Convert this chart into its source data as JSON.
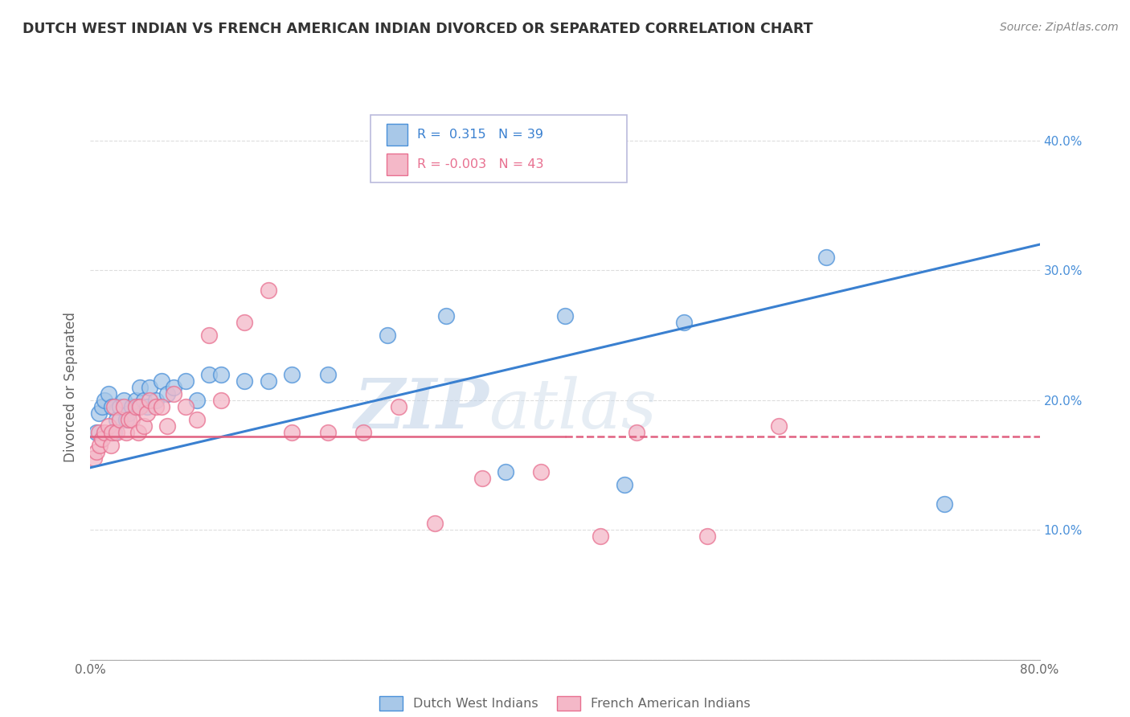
{
  "title": "DUTCH WEST INDIAN VS FRENCH AMERICAN INDIAN DIVORCED OR SEPARATED CORRELATION CHART",
  "source": "Source: ZipAtlas.com",
  "ylabel": "Divorced or Separated",
  "xlim": [
    0.0,
    0.8
  ],
  "ylim": [
    0.0,
    0.42
  ],
  "xticks": [
    0.0,
    0.2,
    0.4,
    0.6,
    0.8
  ],
  "xticklabels": [
    "0.0%",
    "",
    "",
    "",
    "80.0%"
  ],
  "yticks": [
    0.0,
    0.1,
    0.2,
    0.3,
    0.4
  ],
  "yticklabels_right": [
    "",
    "10.0%",
    "20.0%",
    "30.0%",
    "40.0%"
  ],
  "blue_R": 0.315,
  "blue_N": 39,
  "pink_R": -0.003,
  "pink_N": 43,
  "blue_color": "#a8c8e8",
  "pink_color": "#f4b8c8",
  "blue_edge_color": "#4a90d9",
  "pink_edge_color": "#e87090",
  "blue_line_color": "#3a80d0",
  "pink_line_color": "#e06080",
  "tick_color": "#4a90d9",
  "grid_color": "#dddddd",
  "watermark_color": "#c8ddf0",
  "legend_label_blue": "Dutch West Indians",
  "legend_label_pink": "French American Indians",
  "blue_scatter_x": [
    0.005,
    0.007,
    0.01,
    0.012,
    0.015,
    0.018,
    0.02,
    0.022,
    0.025,
    0.028,
    0.03,
    0.032,
    0.035,
    0.038,
    0.04,
    0.042,
    0.045,
    0.048,
    0.05,
    0.055,
    0.06,
    0.065,
    0.07,
    0.08,
    0.09,
    0.1,
    0.11,
    0.13,
    0.15,
    0.17,
    0.2,
    0.25,
    0.3,
    0.35,
    0.4,
    0.45,
    0.5,
    0.62,
    0.72
  ],
  "blue_scatter_y": [
    0.175,
    0.19,
    0.195,
    0.2,
    0.205,
    0.195,
    0.175,
    0.185,
    0.195,
    0.2,
    0.185,
    0.19,
    0.195,
    0.2,
    0.195,
    0.21,
    0.2,
    0.195,
    0.21,
    0.2,
    0.215,
    0.205,
    0.21,
    0.215,
    0.2,
    0.22,
    0.22,
    0.215,
    0.215,
    0.22,
    0.22,
    0.25,
    0.265,
    0.145,
    0.265,
    0.135,
    0.26,
    0.31,
    0.12
  ],
  "pink_scatter_x": [
    0.003,
    0.005,
    0.007,
    0.008,
    0.01,
    0.012,
    0.015,
    0.017,
    0.018,
    0.02,
    0.022,
    0.025,
    0.028,
    0.03,
    0.032,
    0.035,
    0.038,
    0.04,
    0.042,
    0.045,
    0.048,
    0.05,
    0.055,
    0.06,
    0.065,
    0.07,
    0.08,
    0.09,
    0.1,
    0.11,
    0.13,
    0.15,
    0.17,
    0.2,
    0.23,
    0.26,
    0.29,
    0.33,
    0.38,
    0.43,
    0.46,
    0.52,
    0.58
  ],
  "pink_scatter_y": [
    0.155,
    0.16,
    0.175,
    0.165,
    0.17,
    0.175,
    0.18,
    0.165,
    0.175,
    0.195,
    0.175,
    0.185,
    0.195,
    0.175,
    0.185,
    0.185,
    0.195,
    0.175,
    0.195,
    0.18,
    0.19,
    0.2,
    0.195,
    0.195,
    0.18,
    0.205,
    0.195,
    0.185,
    0.25,
    0.2,
    0.26,
    0.285,
    0.175,
    0.175,
    0.175,
    0.195,
    0.105,
    0.14,
    0.145,
    0.095,
    0.175,
    0.095,
    0.18
  ],
  "pink_line_solid_end": 0.4,
  "blue_line_start_y": 0.148,
  "blue_line_end_y": 0.32,
  "pink_line_y": 0.172
}
